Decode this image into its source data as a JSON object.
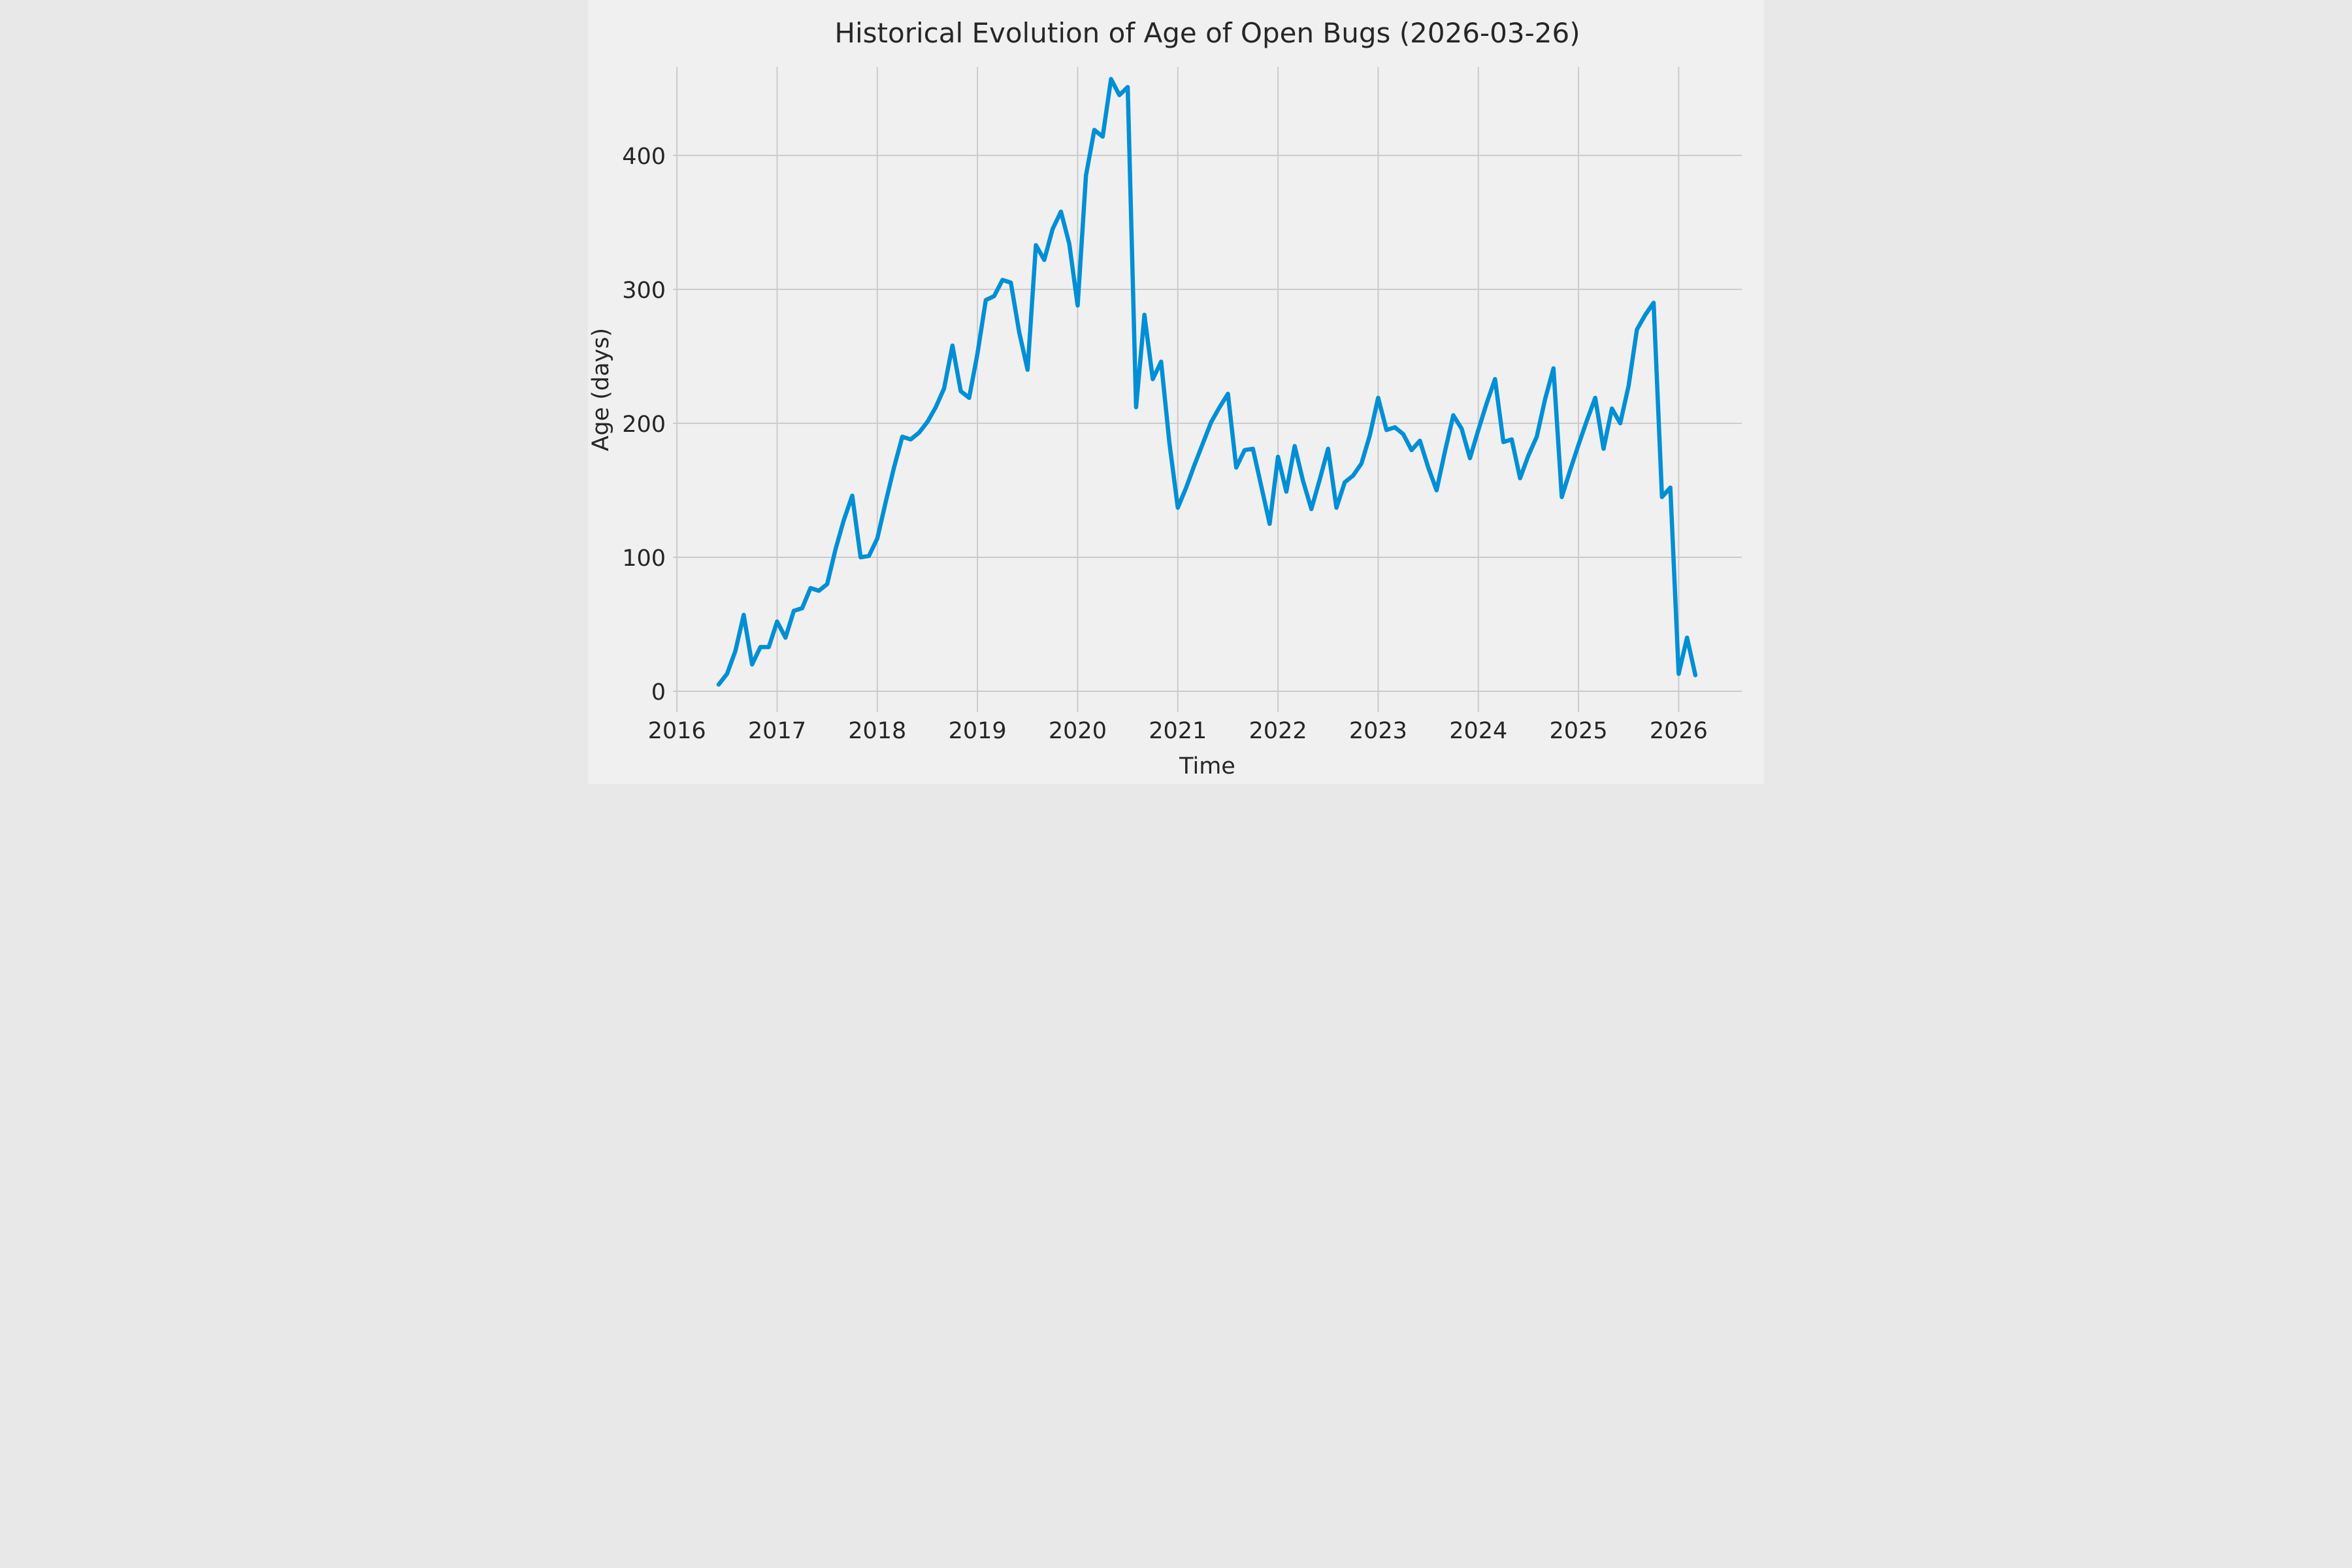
{
  "title": "Historical Evolution of Age of Open Bugs (2026-03-26)",
  "colors": {
    "background": "#f0f0f0",
    "grid": "#cbcbcb",
    "line": "#008fd5",
    "text": "#262626"
  },
  "chart_data": {
    "type": "line",
    "title": "Historical Evolution of Age of Open Bugs (2026-03-26)",
    "xlabel": "Time",
    "ylabel": "Age (days)",
    "x_ticks": [
      2016,
      2017,
      2018,
      2019,
      2020,
      2021,
      2022,
      2023,
      2024,
      2025,
      2026
    ],
    "y_ticks": [
      0,
      100,
      200,
      300,
      400
    ],
    "xlim": [
      2015.96,
      2026.63
    ],
    "ylim": [
      -15.6,
      466
    ],
    "grid": true,
    "legend": false,
    "points": [
      [
        "2016-06",
        5
      ],
      [
        "2016-07",
        13
      ],
      [
        "2016-08",
        30
      ],
      [
        "2016-09",
        57
      ],
      [
        "2016-10",
        20
      ],
      [
        "2016-11",
        33
      ],
      [
        "2016-12",
        33
      ],
      [
        "2017-01",
        52
      ],
      [
        "2017-02",
        40
      ],
      [
        "2017-03",
        60
      ],
      [
        "2017-04",
        62
      ],
      [
        "2017-05",
        77
      ],
      [
        "2017-06",
        75
      ],
      [
        "2017-07",
        80
      ],
      [
        "2017-08",
        106
      ],
      [
        "2017-09",
        128
      ],
      [
        "2017-10",
        146
      ],
      [
        "2017-11",
        100
      ],
      [
        "2017-12",
        101
      ],
      [
        "2018-01",
        114
      ],
      [
        "2018-02",
        141
      ],
      [
        "2018-03",
        167
      ],
      [
        "2018-04",
        190
      ],
      [
        "2018-05",
        188
      ],
      [
        "2018-06",
        193
      ],
      [
        "2018-07",
        201
      ],
      [
        "2018-08",
        212
      ],
      [
        "2018-09",
        226
      ],
      [
        "2018-10",
        258
      ],
      [
        "2018-11",
        224
      ],
      [
        "2018-12",
        219
      ],
      [
        "2019-01",
        252
      ],
      [
        "2019-02",
        292
      ],
      [
        "2019-03",
        295
      ],
      [
        "2019-04",
        307
      ],
      [
        "2019-05",
        305
      ],
      [
        "2019-06",
        268
      ],
      [
        "2019-07",
        240
      ],
      [
        "2019-08",
        333
      ],
      [
        "2019-09",
        322
      ],
      [
        "2019-10",
        345
      ],
      [
        "2019-11",
        358
      ],
      [
        "2019-12",
        334
      ],
      [
        "2020-01",
        288
      ],
      [
        "2020-02",
        385
      ],
      [
        "2020-03",
        419
      ],
      [
        "2020-04",
        414
      ],
      [
        "2020-05",
        457
      ],
      [
        "2020-06",
        445
      ],
      [
        "2020-07",
        451
      ],
      [
        "2020-08",
        212
      ],
      [
        "2020-09",
        281
      ],
      [
        "2020-10",
        233
      ],
      [
        "2020-11",
        246
      ],
      [
        "2020-12",
        185
      ],
      [
        "2021-01",
        137
      ],
      [
        "2021-02",
        152
      ],
      [
        "2021-03",
        169
      ],
      [
        "2021-04",
        185
      ],
      [
        "2021-05",
        201
      ],
      [
        "2021-06",
        212
      ],
      [
        "2021-07",
        222
      ],
      [
        "2021-08",
        167
      ],
      [
        "2021-09",
        180
      ],
      [
        "2021-10",
        181
      ],
      [
        "2021-11",
        153
      ],
      [
        "2021-12",
        125
      ],
      [
        "2022-01",
        175
      ],
      [
        "2022-02",
        149
      ],
      [
        "2022-03",
        183
      ],
      [
        "2022-04",
        157
      ],
      [
        "2022-05",
        136
      ],
      [
        "2022-06",
        158
      ],
      [
        "2022-07",
        181
      ],
      [
        "2022-08",
        137
      ],
      [
        "2022-09",
        156
      ],
      [
        "2022-10",
        161
      ],
      [
        "2022-11",
        170
      ],
      [
        "2022-12",
        191
      ],
      [
        "2023-01",
        219
      ],
      [
        "2023-02",
        195
      ],
      [
        "2023-03",
        197
      ],
      [
        "2023-04",
        192
      ],
      [
        "2023-05",
        180
      ],
      [
        "2023-06",
        187
      ],
      [
        "2023-07",
        167
      ],
      [
        "2023-08",
        150
      ],
      [
        "2023-09",
        179
      ],
      [
        "2023-10",
        206
      ],
      [
        "2023-11",
        196
      ],
      [
        "2023-12",
        174
      ],
      [
        "2024-01",
        195
      ],
      [
        "2024-02",
        215
      ],
      [
        "2024-03",
        233
      ],
      [
        "2024-04",
        186
      ],
      [
        "2024-05",
        188
      ],
      [
        "2024-06",
        159
      ],
      [
        "2024-07",
        176
      ],
      [
        "2024-08",
        190
      ],
      [
        "2024-09",
        218
      ],
      [
        "2024-10",
        241
      ],
      [
        "2024-11",
        145
      ],
      [
        "2024-12",
        165
      ],
      [
        "2025-01",
        184
      ],
      [
        "2025-02",
        202
      ],
      [
        "2025-03",
        219
      ],
      [
        "2025-04",
        181
      ],
      [
        "2025-05",
        211
      ],
      [
        "2025-06",
        200
      ],
      [
        "2025-07",
        228
      ],
      [
        "2025-08",
        270
      ],
      [
        "2025-09",
        281
      ],
      [
        "2025-10",
        290
      ],
      [
        "2025-11",
        145
      ],
      [
        "2025-12",
        152
      ],
      [
        "2026-01",
        13
      ],
      [
        "2026-02",
        40
      ],
      [
        "2026-03",
        12
      ]
    ]
  }
}
